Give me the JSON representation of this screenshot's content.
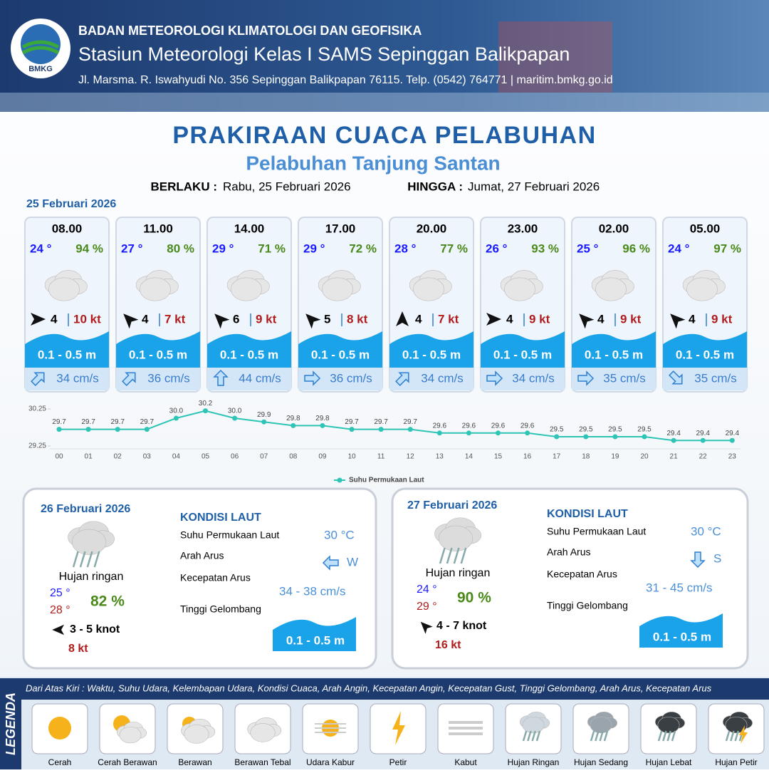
{
  "header": {
    "agency": "BADAN METEOROLOGI KLIMATOLOGI DAN GEOFISIKA",
    "station": "Stasiun Meteorologi Kelas I SAMS Sepinggan Balikpapan",
    "address": "Jl. Marsma. R. Iswahyudi No. 356 Sepinggan Balikpapan 76115. Telp. (0542) 764771 | maritim.bmkg.go.id",
    "logo": "BMKG"
  },
  "title": "PRAKIRAAN CUACA PELABUHAN",
  "subtitle": "Pelabuhan Tanjung Santan",
  "validity": {
    "from_label": "BERLAKU :",
    "from": "Rabu, 25 Februari 2026",
    "to_label": "HINGGA :",
    "to": "Jumat, 27 Februari 2026"
  },
  "day1": {
    "date": "25 Februari 2026",
    "cards": [
      {
        "time": "08.00",
        "temp": "24 °",
        "rh": "94 %",
        "wind": "4",
        "gust": "10 kt",
        "wave": "0.1 - 0.5 m",
        "current": "34 cm/s"
      },
      {
        "time": "11.00",
        "temp": "27 °",
        "rh": "80 %",
        "wind": "4",
        "gust": "7 kt",
        "wave": "0.1 - 0.5 m",
        "current": "36 cm/s"
      },
      {
        "time": "14.00",
        "temp": "29 °",
        "rh": "71 %",
        "wind": "6",
        "gust": "9 kt",
        "wave": "0.1 - 0.5 m",
        "current": "44 cm/s"
      },
      {
        "time": "17.00",
        "temp": "29 °",
        "rh": "72 %",
        "wind": "5",
        "gust": "8 kt",
        "wave": "0.1 - 0.5 m",
        "current": "36 cm/s"
      },
      {
        "time": "20.00",
        "temp": "28 °",
        "rh": "77 %",
        "wind": "4",
        "gust": "7 kt",
        "wave": "0.1 - 0.5 m",
        "current": "34 cm/s"
      },
      {
        "time": "23.00",
        "temp": "26 °",
        "rh": "93 %",
        "wind": "4",
        "gust": "9 kt",
        "wave": "0.1 - 0.5 m",
        "current": "34 cm/s"
      },
      {
        "time": "02.00",
        "temp": "25 °",
        "rh": "96 %",
        "wind": "4",
        "gust": "9 kt",
        "wave": "0.1 - 0.5 m",
        "current": "35 cm/s"
      },
      {
        "time": "05.00",
        "temp": "24 °",
        "rh": "97 %",
        "wind": "4",
        "gust": "9 kt",
        "wave": "0.1 - 0.5 m",
        "current": "35 cm/s"
      }
    ]
  },
  "chart_data": {
    "type": "line",
    "categories": [
      "00",
      "01",
      "02",
      "03",
      "04",
      "05",
      "06",
      "07",
      "08",
      "09",
      "10",
      "11",
      "12",
      "13",
      "14",
      "15",
      "16",
      "17",
      "18",
      "19",
      "20",
      "21",
      "22",
      "23"
    ],
    "series": [
      {
        "name": "Suhu Permukaan Laut",
        "color": "#2ec4b6",
        "values": [
          29.7,
          29.7,
          29.7,
          29.7,
          30.0,
          30.2,
          30.0,
          29.9,
          29.8,
          29.8,
          29.7,
          29.7,
          29.7,
          29.6,
          29.6,
          29.6,
          29.6,
          29.5,
          29.5,
          29.5,
          29.5,
          29.4,
          29.4,
          29.4
        ],
        "value_labels": [
          "29.7",
          "29.7",
          "29.7",
          "29.7",
          "30.0",
          "30.2",
          "30.0",
          "29.9",
          "29.8",
          "29.8",
          "29.7",
          "29.7",
          "29.7",
          "29.6",
          "29.6",
          "29.6",
          "29.6",
          "29.5",
          "29.5",
          "29.5",
          "29.5",
          "29.4",
          "29.4",
          "29.4"
        ]
      }
    ],
    "ylim": [
      29.25,
      30.25
    ],
    "yticks": [
      29.25,
      30.25
    ]
  },
  "days": [
    {
      "date": "26 Februari 2026",
      "weather": "Hujan ringan",
      "temp_min": "25 °",
      "temp_max": "28 °",
      "rh": "82 %",
      "wind": "3  - 5 knot",
      "gust": "8 kt",
      "sea_title": "KONDISI LAUT",
      "sst_label": "Suhu Permukaan Laut",
      "sst": "30 °C",
      "current_dir_label": "Arah Arus",
      "current_dir": "W",
      "current_speed_label": "Kecepatan Arus",
      "current_speed": "34  - 38 cm/s",
      "wave_label": "Tinggi Gelombang",
      "wave": "0.1 - 0.5 m"
    },
    {
      "date": "27 Februari 2026",
      "weather": "Hujan ringan",
      "temp_min": "24 °",
      "temp_max": "29 °",
      "rh": "90 %",
      "wind": "4  - 7 knot",
      "gust": "16 kt",
      "sea_title": "KONDISI LAUT",
      "sst_label": "Suhu Permukaan Laut",
      "sst": "30 °C",
      "current_dir_label": "Arah Arus",
      "current_dir": "S",
      "current_speed_label": "Kecepatan Arus",
      "current_speed": "31  - 45 cm/s",
      "wave_label": "Tinggi Gelombang",
      "wave": "0.1 - 0.5 m"
    }
  ],
  "legend": {
    "title": "LEGENDA",
    "description": "Dari Atas Kiri : Waktu, Suhu Udara, Kelembapan Udara, Kondisi Cuaca, Arah Angin, Kecepatan Angin, Kecepatan Gust, Tinggi Gelombang, Arah Arus, Kecepatan Arus",
    "items": [
      "Cerah",
      "Cerah Berawan",
      "Berawan",
      "Berawan Tebal",
      "Udara Kabur",
      "Petir",
      "Kabut",
      "Hujan Ringan",
      "Hujan Sedang",
      "Hujan Lebat",
      "Hujan Petir"
    ]
  }
}
